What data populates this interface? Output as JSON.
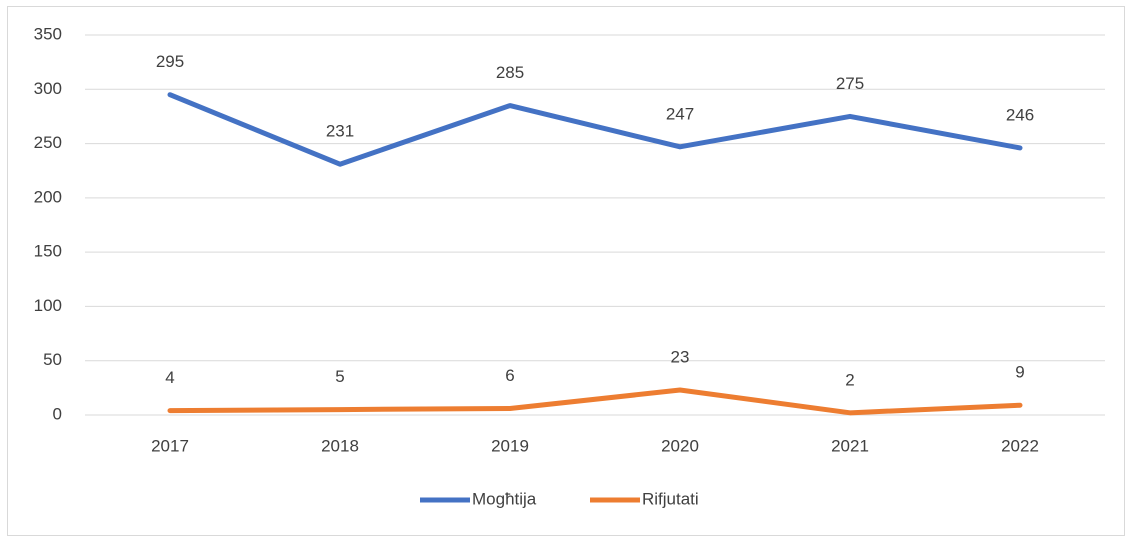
{
  "chart_data": {
    "type": "line",
    "categories": [
      "2017",
      "2018",
      "2019",
      "2020",
      "2021",
      "2022"
    ],
    "series": [
      {
        "name": "Mogħtija",
        "color": "#4472c4",
        "values": [
          295,
          231,
          285,
          247,
          275,
          246
        ]
      },
      {
        "name": "Rifjutati",
        "color": "#ed7d31",
        "values": [
          4,
          5,
          6,
          23,
          2,
          9
        ]
      }
    ],
    "ylim": [
      0,
      350
    ],
    "yticks": [
      0,
      50,
      100,
      150,
      200,
      250,
      300,
      350
    ],
    "grid": true,
    "legend": "bottom"
  }
}
